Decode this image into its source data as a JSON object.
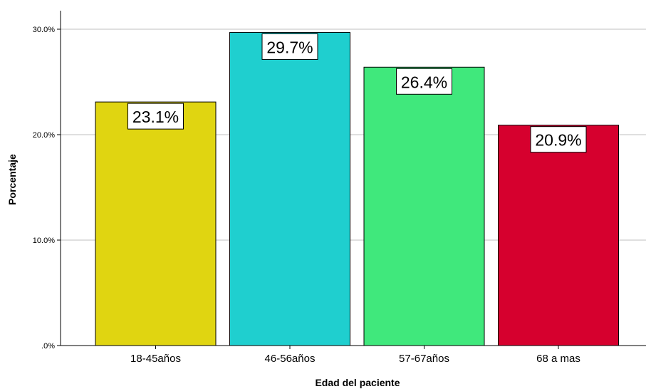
{
  "chart_data": {
    "type": "bar",
    "title": "",
    "xlabel": "Edad del paciente",
    "ylabel": "Porcentaje",
    "ylim": [
      0,
      32
    ],
    "yticks": [
      0,
      10,
      20,
      30
    ],
    "ytick_labels": [
      ".0%",
      "10.0%",
      "20.0%",
      "30.0%"
    ],
    "grid": true,
    "categories": [
      "18-45años",
      "46-56años",
      "57-67años",
      "68 a mas"
    ],
    "values": [
      23.1,
      29.7,
      26.4,
      20.9
    ],
    "data_labels": [
      "23.1%",
      "29.7%",
      "26.4%",
      "20.9%"
    ],
    "bar_colors": [
      "#e0d511",
      "#1fcfcf",
      "#40e87c",
      "#d6002e"
    ]
  }
}
